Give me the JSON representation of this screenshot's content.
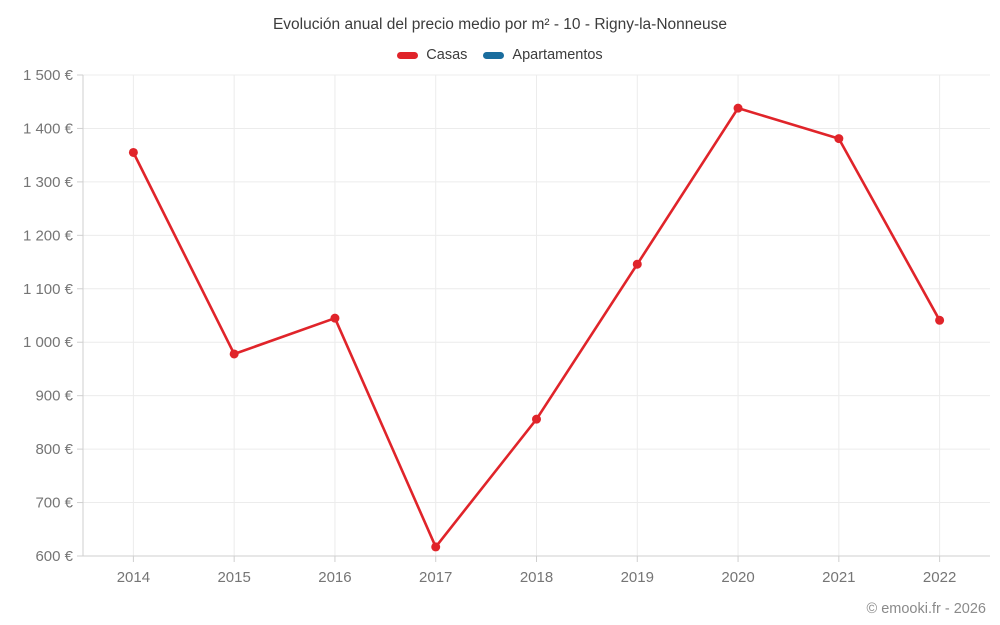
{
  "title": "Evolución anual del precio medio por m² - 10 - Rigny-la-Nonneuse",
  "legend": {
    "items": [
      {
        "label": "Casas",
        "color": "#e0242a"
      },
      {
        "label": "Apartamentos",
        "color": "#1a6d9e"
      }
    ]
  },
  "footer": {
    "copyright": "© emooki.fr - 2026"
  },
  "colors": {
    "casas_line": "#e0242a",
    "apartamentos_line": "#1a6d9e",
    "grid": "#ececec",
    "axis": "#cfcfcf",
    "tick_label": "#757575",
    "title_text": "#3c3c3c",
    "footer_text": "#8a8a8a"
  },
  "chart_data": {
    "type": "line",
    "title": "Evolución anual del precio medio por m² - 10 - Rigny-la-Nonneuse",
    "categories": [
      "2014",
      "2015",
      "2016",
      "2017",
      "2018",
      "2019",
      "2020",
      "2021",
      "2022"
    ],
    "series": [
      {
        "name": "Casas",
        "color": "#e0242a",
        "values": [
          1355,
          978,
          1045,
          617,
          856,
          1146,
          1438,
          1381,
          1041
        ]
      },
      {
        "name": "Apartamentos",
        "color": "#1a6d9e",
        "values": []
      }
    ],
    "xlabel": "",
    "ylabel": "",
    "ylim": [
      600,
      1500
    ],
    "y_ticks": [
      600,
      700,
      800,
      900,
      1000,
      1100,
      1200,
      1300,
      1400,
      1500
    ],
    "y_tick_format": "{value} €",
    "grid": true,
    "legend_position": "top",
    "marker_radius": 4.5,
    "line_width": 2.6
  }
}
